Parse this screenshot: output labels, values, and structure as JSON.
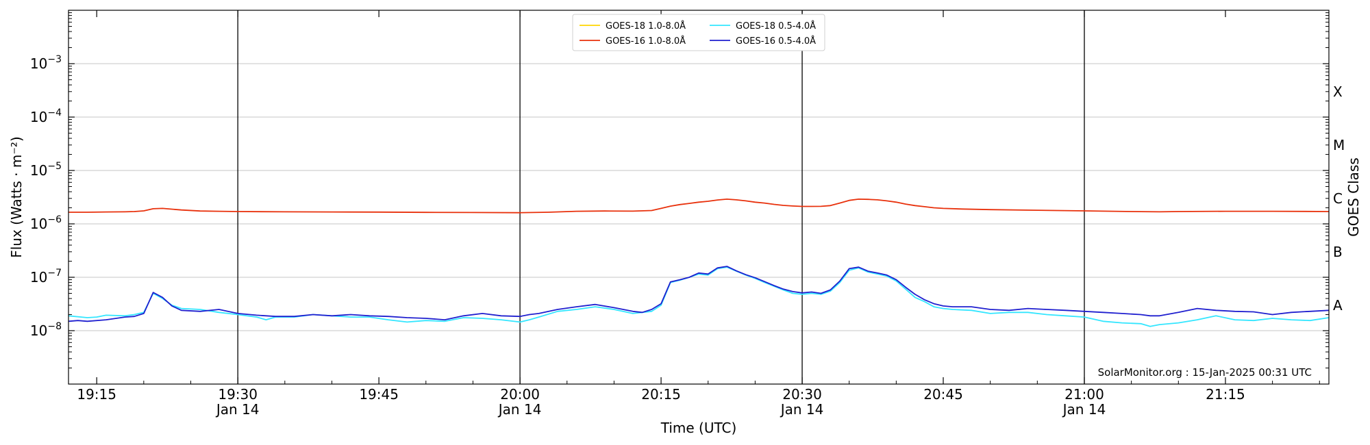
{
  "chart_data": {
    "type": "line",
    "xlabel": "Time (UTC)",
    "ylabel": "Flux (Watts · m⁻²)",
    "ylabel_right": "GOES Class",
    "y_scale": "log",
    "ylim": [
      1e-09,
      0.01
    ],
    "xlim": [
      "19:12",
      "21:26"
    ],
    "grid": "horizontal at major decades",
    "x_ticks": [
      {
        "time": "19:15",
        "label": "19:15",
        "sublabel": ""
      },
      {
        "time": "19:30",
        "label": "19:30",
        "sublabel": "Jan 14"
      },
      {
        "time": "19:45",
        "label": "19:45",
        "sublabel": ""
      },
      {
        "time": "20:00",
        "label": "20:00",
        "sublabel": "Jan 14"
      },
      {
        "time": "20:15",
        "label": "20:15",
        "sublabel": ""
      },
      {
        "time": "20:30",
        "label": "20:30",
        "sublabel": "Jan 14"
      },
      {
        "time": "20:45",
        "label": "20:45",
        "sublabel": ""
      },
      {
        "time": "21:00",
        "label": "21:00",
        "sublabel": "Jan 14"
      },
      {
        "time": "21:15",
        "label": "21:15",
        "sublabel": ""
      }
    ],
    "vertical_lines": [
      "19:30",
      "20:00",
      "20:30",
      "21:00"
    ],
    "y_ticks": [
      {
        "value": 1e-08,
        "mant": "10",
        "exp": "−8"
      },
      {
        "value": 1e-07,
        "mant": "10",
        "exp": "−7"
      },
      {
        "value": 1e-06,
        "mant": "10",
        "exp": "−6"
      },
      {
        "value": 1e-05,
        "mant": "10",
        "exp": "−5"
      },
      {
        "value": 0.0001,
        "mant": "10",
        "exp": "−4"
      },
      {
        "value": 0.001,
        "mant": "10",
        "exp": "−3"
      }
    ],
    "goes_classes": [
      {
        "label": "A",
        "value": 3e-08
      },
      {
        "label": "B",
        "value": 3e-07
      },
      {
        "label": "C",
        "value": 3e-06
      },
      {
        "label": "M",
        "value": 3e-05
      },
      {
        "label": "X",
        "value": 0.0003
      }
    ],
    "legend_position": "top-center",
    "annotation": "SolarMonitor.org : 15-Jan-2025 00:31 UTC",
    "series": [
      {
        "name": "GOES-18 1.0-8.0Å",
        "color": "#ffd400",
        "x": [],
        "values": []
      },
      {
        "name": "GOES-16 1.0-8.0Å",
        "color": "#e8300b",
        "x": [
          "19:12",
          "19:14",
          "19:16",
          "19:18",
          "19:19",
          "19:20",
          "19:21",
          "19:22",
          "19:24",
          "19:26",
          "19:28",
          "19:30",
          "19:35",
          "19:40",
          "19:45",
          "19:50",
          "19:55",
          "20:00",
          "20:03",
          "20:06",
          "20:09",
          "20:12",
          "20:14",
          "20:15",
          "20:16",
          "20:17",
          "20:18",
          "20:19",
          "20:20",
          "20:21",
          "20:22",
          "20:23",
          "20:24",
          "20:25",
          "20:26",
          "20:27",
          "20:28",
          "20:29",
          "20:30",
          "20:31",
          "20:32",
          "20:33",
          "20:34",
          "20:35",
          "20:36",
          "20:37",
          "20:38",
          "20:39",
          "20:40",
          "20:41",
          "20:42",
          "20:43",
          "20:44",
          "20:45",
          "20:47",
          "20:50",
          "20:55",
          "21:00",
          "21:05",
          "21:08",
          "21:10",
          "21:15",
          "21:20",
          "21:26"
        ],
        "values": [
          1.65e-06,
          1.65e-06,
          1.67e-06,
          1.68e-06,
          1.7e-06,
          1.75e-06,
          1.92e-06,
          1.95e-06,
          1.82e-06,
          1.74e-06,
          1.72e-06,
          1.7e-06,
          1.68e-06,
          1.67e-06,
          1.66e-06,
          1.64e-06,
          1.63e-06,
          1.62e-06,
          1.65e-06,
          1.72e-06,
          1.74e-06,
          1.73e-06,
          1.78e-06,
          1.95e-06,
          2.15e-06,
          2.3e-06,
          2.42e-06,
          2.55e-06,
          2.65e-06,
          2.8e-06,
          2.9e-06,
          2.82e-06,
          2.7e-06,
          2.55e-06,
          2.45e-06,
          2.32e-06,
          2.22e-06,
          2.16e-06,
          2.12e-06,
          2.12e-06,
          2.13e-06,
          2.2e-06,
          2.45e-06,
          2.75e-06,
          2.9e-06,
          2.88e-06,
          2.82e-06,
          2.7e-06,
          2.55e-06,
          2.35e-06,
          2.2e-06,
          2.1e-06,
          2e-06,
          1.95e-06,
          1.9e-06,
          1.85e-06,
          1.8e-06,
          1.75e-06,
          1.7e-06,
          1.68e-06,
          1.7e-06,
          1.72e-06,
          1.72e-06,
          1.7e-06
        ]
      },
      {
        "name": "GOES-18 0.5-4.0Å",
        "color": "#33e6ff",
        "x": [
          "19:12",
          "19:14",
          "19:15",
          "19:16",
          "19:18",
          "19:19",
          "19:20",
          "19:21",
          "19:22",
          "19:23",
          "19:24",
          "19:26",
          "19:28",
          "19:30",
          "19:32",
          "19:33",
          "19:34",
          "19:36",
          "19:38",
          "19:40",
          "19:42",
          "19:44",
          "19:46",
          "19:48",
          "19:50",
          "19:52",
          "19:54",
          "19:56",
          "19:58",
          "20:00",
          "20:01",
          "20:02",
          "20:04",
          "20:06",
          "20:08",
          "20:10",
          "20:12",
          "20:13",
          "20:14",
          "20:15",
          "20:16",
          "20:17",
          "20:18",
          "20:19",
          "20:20",
          "20:21",
          "20:22",
          "20:23",
          "20:24",
          "20:25",
          "20:26",
          "20:27",
          "20:28",
          "20:29",
          "20:30",
          "20:31",
          "20:32",
          "20:33",
          "20:34",
          "20:35",
          "20:36",
          "20:37",
          "20:38",
          "20:39",
          "20:40",
          "20:41",
          "20:42",
          "20:43",
          "20:44",
          "20:45",
          "20:46",
          "20:48",
          "20:50",
          "20:52",
          "20:54",
          "20:56",
          "20:58",
          "21:00",
          "21:02",
          "21:04",
          "21:06",
          "21:07",
          "21:08",
          "21:10",
          "21:12",
          "21:14",
          "21:16",
          "21:18",
          "21:20",
          "21:22",
          "21:24",
          "21:26"
        ],
        "values": [
          1.9e-08,
          1.75e-08,
          1.8e-08,
          1.95e-08,
          1.9e-08,
          2e-08,
          2.2e-08,
          5e-08,
          4e-08,
          3e-08,
          2.6e-08,
          2.5e-08,
          2.2e-08,
          2e-08,
          1.8e-08,
          1.6e-08,
          1.8e-08,
          1.8e-08,
          2e-08,
          1.9e-08,
          1.8e-08,
          1.8e-08,
          1.6e-08,
          1.45e-08,
          1.55e-08,
          1.5e-08,
          1.75e-08,
          1.7e-08,
          1.6e-08,
          1.45e-08,
          1.6e-08,
          1.8e-08,
          2.3e-08,
          2.5e-08,
          2.8e-08,
          2.5e-08,
          2.1e-08,
          2.2e-08,
          2.3e-08,
          3e-08,
          8e-08,
          8.8e-08,
          1e-07,
          1.15e-07,
          1.1e-07,
          1.45e-07,
          1.55e-07,
          1.3e-07,
          1.1e-07,
          9.5e-08,
          8e-08,
          6.8e-08,
          5.8e-08,
          5e-08,
          4.8e-08,
          5e-08,
          4.8e-08,
          5.5e-08,
          8e-08,
          1.35e-07,
          1.5e-07,
          1.25e-07,
          1.15e-07,
          1.05e-07,
          8.5e-08,
          6e-08,
          4.2e-08,
          3.5e-08,
          2.8e-08,
          2.6e-08,
          2.5e-08,
          2.4e-08,
          2.1e-08,
          2.2e-08,
          2.2e-08,
          2e-08,
          1.9e-08,
          1.8e-08,
          1.5e-08,
          1.4e-08,
          1.35e-08,
          1.2e-08,
          1.3e-08,
          1.4e-08,
          1.6e-08,
          1.9e-08,
          1.6e-08,
          1.55e-08,
          1.7e-08,
          1.6e-08,
          1.55e-08,
          1.75e-08
        ]
      },
      {
        "name": "GOES-16 0.5-4.0Å",
        "color": "#1f1fcf",
        "x": [
          "19:12",
          "19:13",
          "19:14",
          "19:16",
          "19:18",
          "19:19",
          "19:20",
          "19:21",
          "19:22",
          "19:23",
          "19:24",
          "19:26",
          "19:28",
          "19:30",
          "19:32",
          "19:34",
          "19:36",
          "19:38",
          "19:40",
          "19:42",
          "19:44",
          "19:46",
          "19:48",
          "19:50",
          "19:52",
          "19:54",
          "19:56",
          "19:58",
          "20:00",
          "20:01",
          "20:02",
          "20:04",
          "20:06",
          "20:08",
          "20:10",
          "20:12",
          "20:13",
          "20:14",
          "20:15",
          "20:16",
          "20:17",
          "20:18",
          "20:19",
          "20:20",
          "20:21",
          "20:22",
          "20:23",
          "20:24",
          "20:25",
          "20:26",
          "20:27",
          "20:28",
          "20:29",
          "20:30",
          "20:31",
          "20:32",
          "20:33",
          "20:34",
          "20:35",
          "20:36",
          "20:37",
          "20:38",
          "20:39",
          "20:40",
          "20:41",
          "20:42",
          "20:43",
          "20:44",
          "20:45",
          "20:46",
          "20:48",
          "20:50",
          "20:52",
          "20:54",
          "20:56",
          "20:58",
          "21:00",
          "21:02",
          "21:04",
          "21:06",
          "21:07",
          "21:08",
          "21:10",
          "21:12",
          "21:14",
          "21:16",
          "21:18",
          "21:20",
          "21:22",
          "21:24",
          "21:26"
        ],
        "values": [
          1.5e-08,
          1.55e-08,
          1.5e-08,
          1.6e-08,
          1.8e-08,
          1.85e-08,
          2.1e-08,
          5.2e-08,
          4.2e-08,
          2.9e-08,
          2.4e-08,
          2.3e-08,
          2.5e-08,
          2.1e-08,
          1.95e-08,
          1.85e-08,
          1.85e-08,
          2e-08,
          1.9e-08,
          2e-08,
          1.9e-08,
          1.85e-08,
          1.75e-08,
          1.7e-08,
          1.6e-08,
          1.9e-08,
          2.1e-08,
          1.9e-08,
          1.85e-08,
          2e-08,
          2.1e-08,
          2.5e-08,
          2.8e-08,
          3.1e-08,
          2.7e-08,
          2.3e-08,
          2.2e-08,
          2.5e-08,
          3.2e-08,
          8.2e-08,
          9e-08,
          1e-07,
          1.2e-07,
          1.15e-07,
          1.5e-07,
          1.6e-07,
          1.32e-07,
          1.12e-07,
          9.8e-08,
          8.3e-08,
          7e-08,
          6e-08,
          5.4e-08,
          5.1e-08,
          5.3e-08,
          5e-08,
          5.8e-08,
          8.5e-08,
          1.45e-07,
          1.55e-07,
          1.3e-07,
          1.2e-07,
          1.1e-07,
          9e-08,
          6.5e-08,
          4.8e-08,
          3.8e-08,
          3.2e-08,
          2.9e-08,
          2.8e-08,
          2.8e-08,
          2.5e-08,
          2.4e-08,
          2.6e-08,
          2.5e-08,
          2.4e-08,
          2.3e-08,
          2.2e-08,
          2.1e-08,
          2e-08,
          1.9e-08,
          1.9e-08,
          2.2e-08,
          2.6e-08,
          2.4e-08,
          2.3e-08,
          2.25e-08,
          2e-08,
          2.2e-08,
          2.3e-08,
          2.4e-08
        ]
      }
    ]
  }
}
